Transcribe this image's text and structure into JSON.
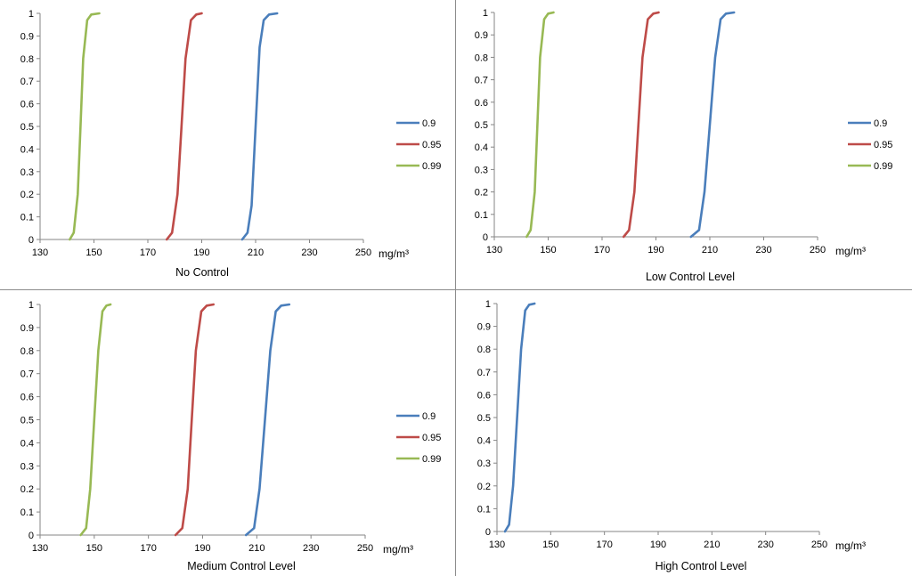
{
  "chart_data": [
    {
      "type": "line",
      "title": "No Control",
      "xlabel": "mg/m³",
      "ylabel": "",
      "xlim": [
        130,
        250
      ],
      "ylim": [
        0,
        1
      ],
      "x_ticks": [
        "130",
        "150",
        "170",
        "190",
        "210",
        "230",
        "250"
      ],
      "y_ticks": [
        "0",
        "0.1",
        "0.2",
        "0.3",
        "0.4",
        "0.5",
        "0.6",
        "0.7",
        "0.8",
        "0.9",
        "1"
      ],
      "grid": false,
      "legend": "right",
      "series": [
        {
          "name": "0.9",
          "color": "#4a7ebb",
          "x": [
            205,
            207,
            208.5,
            210,
            211.5,
            213,
            215,
            218
          ],
          "y": [
            0,
            0.03,
            0.15,
            0.5,
            0.85,
            0.97,
            0.995,
            1
          ]
        },
        {
          "name": "0.95",
          "color": "#be4b48",
          "x": [
            177,
            179,
            181,
            182.5,
            184,
            186,
            188,
            190
          ],
          "y": [
            0,
            0.03,
            0.2,
            0.5,
            0.8,
            0.97,
            0.995,
            1
          ]
        },
        {
          "name": "0.99",
          "color": "#98b954",
          "x": [
            141,
            142.5,
            144,
            145,
            146,
            147.5,
            149,
            152
          ],
          "y": [
            0,
            0.03,
            0.2,
            0.5,
            0.8,
            0.97,
            0.995,
            1
          ]
        }
      ]
    },
    {
      "type": "line",
      "title": "Low Control Level",
      "xlabel": "mg/m³",
      "ylabel": "",
      "xlim": [
        130,
        250
      ],
      "ylim": [
        0,
        1
      ],
      "x_ticks": [
        "130",
        "150",
        "170",
        "190",
        "210",
        "230",
        "250"
      ],
      "y_ticks": [
        "0",
        "0.1",
        "0.2",
        "0.3",
        "0.4",
        "0.5",
        "0.6",
        "0.7",
        "0.8",
        "0.9",
        "1"
      ],
      "grid": false,
      "legend": "right",
      "series": [
        {
          "name": "0.9",
          "color": "#4a7ebb",
          "x": [
            203,
            206,
            208,
            210,
            212,
            214,
            216,
            219
          ],
          "y": [
            0,
            0.03,
            0.2,
            0.5,
            0.8,
            0.97,
            0.995,
            1
          ]
        },
        {
          "name": "0.95",
          "color": "#be4b48",
          "x": [
            178,
            180,
            182,
            183.5,
            185,
            187,
            189,
            191
          ],
          "y": [
            0,
            0.03,
            0.2,
            0.5,
            0.8,
            0.97,
            0.995,
            1
          ]
        },
        {
          "name": "0.99",
          "color": "#98b954",
          "x": [
            142,
            143.5,
            145,
            146,
            147,
            148.5,
            150,
            152
          ],
          "y": [
            0,
            0.03,
            0.2,
            0.5,
            0.8,
            0.97,
            0.995,
            1
          ]
        }
      ]
    },
    {
      "type": "line",
      "title": "Medium Control Level",
      "xlabel": "mg/m³",
      "ylabel": "",
      "xlim": [
        130,
        250
      ],
      "ylim": [
        0,
        1
      ],
      "x_ticks": [
        "130",
        "150",
        "170",
        "190",
        "210",
        "230",
        "250"
      ],
      "y_ticks": [
        "0",
        "0.1",
        "0.2",
        "0.3",
        "0.4",
        "0.5",
        "0.6",
        "0.7",
        "0.8",
        "0.9",
        "1"
      ],
      "grid": false,
      "legend": "right",
      "series": [
        {
          "name": "0.9",
          "color": "#4a7ebb",
          "x": [
            206,
            209,
            211,
            213,
            215,
            217,
            219,
            222
          ],
          "y": [
            0,
            0.03,
            0.2,
            0.5,
            0.8,
            0.97,
            0.995,
            1
          ]
        },
        {
          "name": "0.95",
          "color": "#be4b48",
          "x": [
            180,
            182.5,
            184.5,
            186,
            187.5,
            189.5,
            191.5,
            194
          ],
          "y": [
            0,
            0.03,
            0.2,
            0.5,
            0.8,
            0.97,
            0.995,
            1
          ]
        },
        {
          "name": "0.99",
          "color": "#98b954",
          "x": [
            145,
            147,
            148.5,
            150,
            151.5,
            153,
            154.5,
            156
          ],
          "y": [
            0,
            0.03,
            0.2,
            0.5,
            0.8,
            0.97,
            0.995,
            1
          ]
        }
      ]
    },
    {
      "type": "line",
      "title": "High Control Level",
      "xlabel": "mg/m³",
      "ylabel": "",
      "xlim": [
        130,
        250
      ],
      "ylim": [
        0,
        1
      ],
      "x_ticks": [
        "130",
        "150",
        "170",
        "190",
        "210",
        "230",
        "250"
      ],
      "y_ticks": [
        "0",
        "0.1",
        "0.2",
        "0.3",
        "0.4",
        "0.5",
        "0.6",
        "0.7",
        "0.8",
        "0.9",
        "1"
      ],
      "grid": false,
      "legend": "none",
      "series": [
        {
          "name": "",
          "color": "#4a7ebb",
          "x": [
            133,
            134.5,
            136,
            137.5,
            139,
            140.5,
            142,
            144
          ],
          "y": [
            0,
            0.03,
            0.2,
            0.5,
            0.8,
            0.97,
            0.995,
            1
          ]
        }
      ]
    }
  ]
}
